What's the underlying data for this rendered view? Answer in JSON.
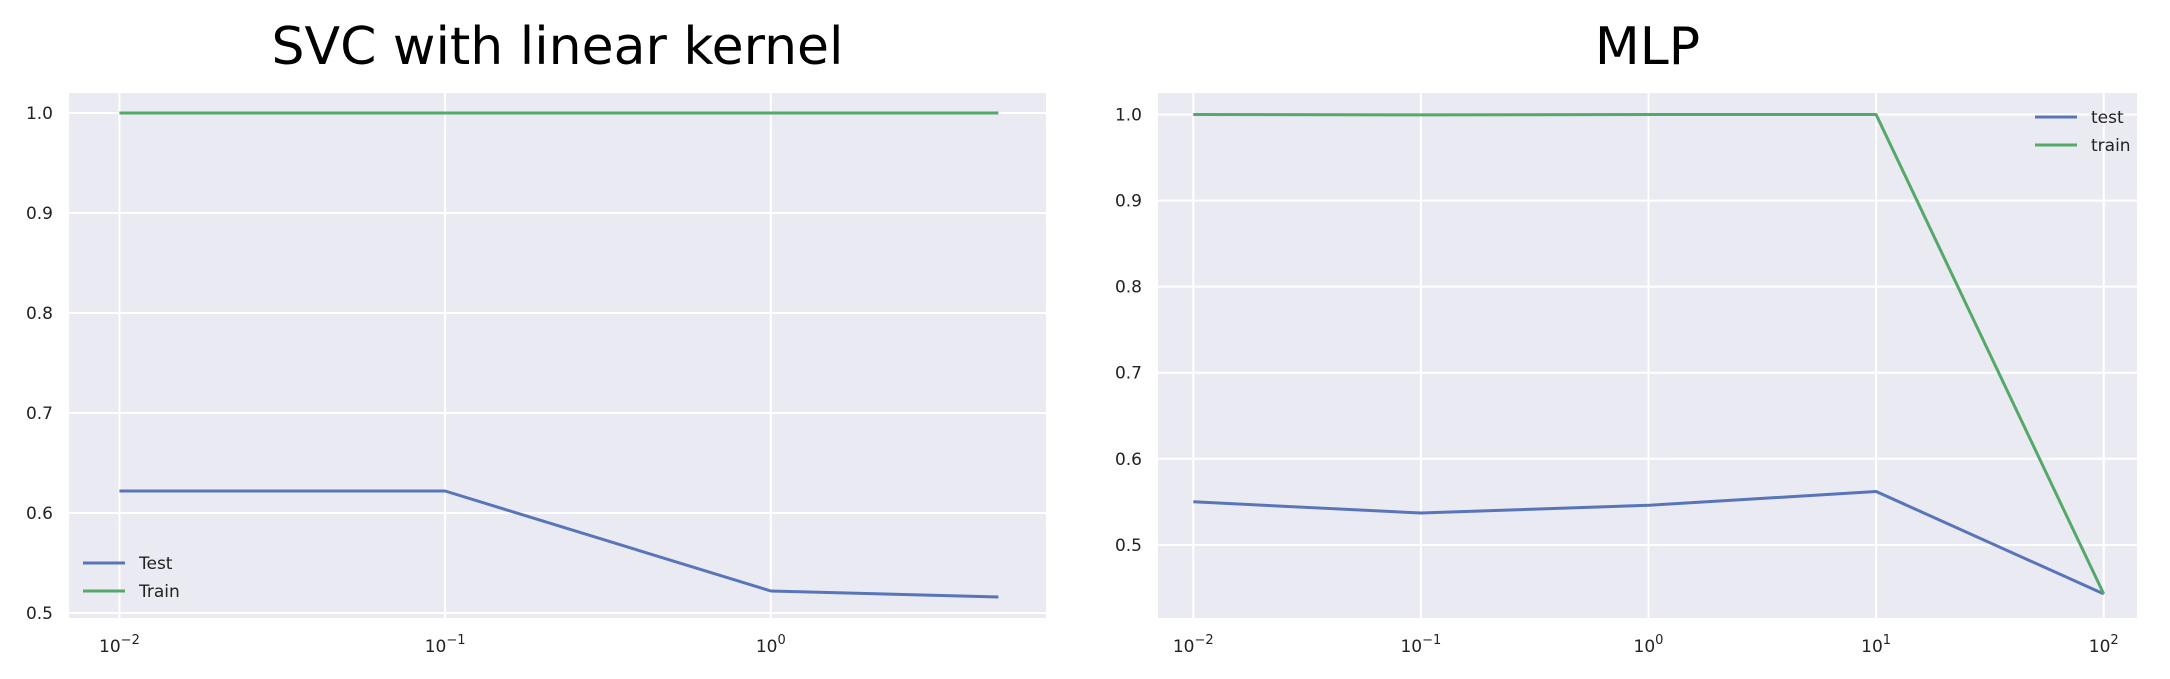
{
  "chart_data": [
    {
      "type": "line",
      "title": "SVC with linear kernel",
      "xlabel": "",
      "ylabel": "",
      "xscale": "log",
      "xlim": [
        0.007,
        7.0
      ],
      "ylim": [
        0.495,
        1.02
      ],
      "xticks": [
        {
          "value": 0.01,
          "base": "10",
          "exp": "−2"
        },
        {
          "value": 0.1,
          "base": "10",
          "exp": "−1"
        },
        {
          "value": 1,
          "base": "10",
          "exp": "0"
        }
      ],
      "yticks": [
        {
          "value": 0.5,
          "label": "0.5"
        },
        {
          "value": 0.6,
          "label": "0.6"
        },
        {
          "value": 0.7,
          "label": "0.7"
        },
        {
          "value": 0.8,
          "label": "0.8"
        },
        {
          "value": 0.9,
          "label": "0.9"
        },
        {
          "value": 1.0,
          "label": "1.0"
        }
      ],
      "grid": true,
      "legend_position": "lower-left",
      "series": [
        {
          "name": "Test",
          "color": "#5975b9",
          "x": [
            0.01,
            0.1,
            1,
            5
          ],
          "y": [
            0.622,
            0.622,
            0.522,
            0.516
          ]
        },
        {
          "name": "Train",
          "color": "#55a868",
          "x": [
            0.01,
            0.1,
            1,
            5
          ],
          "y": [
            1.0,
            1.0,
            1.0,
            1.0
          ]
        }
      ]
    },
    {
      "type": "line",
      "title": "MLP",
      "xlabel": "",
      "ylabel": "",
      "xscale": "log",
      "xlim": [
        0.007,
        140
      ],
      "ylim": [
        0.415,
        1.025
      ],
      "xticks": [
        {
          "value": 0.01,
          "base": "10",
          "exp": "−2"
        },
        {
          "value": 0.1,
          "base": "10",
          "exp": "−1"
        },
        {
          "value": 1,
          "base": "10",
          "exp": "0"
        },
        {
          "value": 10,
          "base": "10",
          "exp": "1"
        },
        {
          "value": 100,
          "base": "10",
          "exp": "2"
        }
      ],
      "yticks": [
        {
          "value": 0.5,
          "label": "0.5"
        },
        {
          "value": 0.6,
          "label": "0.6"
        },
        {
          "value": 0.7,
          "label": "0.7"
        },
        {
          "value": 0.8,
          "label": "0.8"
        },
        {
          "value": 0.9,
          "label": "0.9"
        },
        {
          "value": 1.0,
          "label": "1.0"
        }
      ],
      "grid": true,
      "legend_position": "upper-right",
      "series": [
        {
          "name": "test",
          "color": "#5975b9",
          "x": [
            0.01,
            0.1,
            1,
            10,
            100
          ],
          "y": [
            0.55,
            0.537,
            0.546,
            0.562,
            0.443
          ]
        },
        {
          "name": "train",
          "color": "#55a868",
          "x": [
            0.01,
            0.1,
            1,
            10,
            100
          ],
          "y": [
            1.0,
            0.9995,
            1.0,
            1.0,
            0.443
          ]
        }
      ]
    }
  ]
}
